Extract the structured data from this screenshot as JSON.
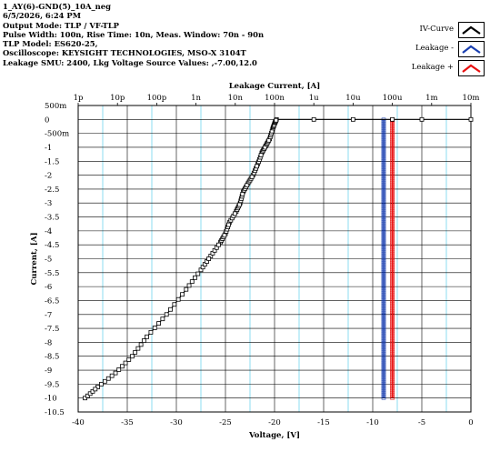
{
  "header": {
    "lines": [
      "1_AY(6)-GND(5)_10A_neg",
      "6/5/2026, 6:24 PM",
      "Output Mode: TLP / VF-TLP",
      "Pulse Width: 100n, Rise Time: 10n, Meas. Window: 70n -  90n",
      "TLP Model: ES620-25,",
      "Oscilloscope: KEYSIGHT TECHNOLOGIES, MSO-X 3104T",
      "Leakage SMU: 2400, Lkg Voltage Source Values: ,-7.00,12.0"
    ]
  },
  "legend": [
    {
      "label": "IV-Curve",
      "color": "#000000"
    },
    {
      "label": "Leakage -",
      "color": "#1a3fb0"
    },
    {
      "label": "Leakage +",
      "color": "#e81010"
    }
  ],
  "chart_data": {
    "type": "scatter",
    "xlabel": "Voltage, [V]",
    "ylabel": "Current, [A]",
    "x2label": "Leakage Current, [A]",
    "xlim": [
      -40,
      0
    ],
    "ylim": [
      -10.5,
      0.5
    ],
    "x_ticks": [
      "-40",
      "-35",
      "-30",
      "-25",
      "-20",
      "-15",
      "-10",
      "-5",
      "0"
    ],
    "y_ticks": [
      "500m",
      "0",
      "-500m",
      "-1",
      "-1.5",
      "-2",
      "-2.5",
      "-3",
      "-3.5",
      "-4",
      "-4.5",
      "-5",
      "-5.5",
      "-6",
      "-6.5",
      "-7",
      "-7.5",
      "-8",
      "-8.5",
      "-9",
      "-9.5",
      "-10",
      "-10.5"
    ],
    "x2_ticks": [
      "1p",
      "10p",
      "100p",
      "1n",
      "10n",
      "100n",
      "1u",
      "10u",
      "100u",
      "1m",
      "10m"
    ],
    "x2_log_range": [
      1e-12,
      0.01
    ],
    "series": [
      {
        "name": "IV-Curve",
        "color": "#000000",
        "x": [
          -39.3,
          -38.0,
          -36.2,
          -34.5,
          -33.0,
          -31.0,
          -29.0,
          -27.5,
          -26.5,
          -25.5,
          -25.0,
          -24.6,
          -23.9,
          -23.5,
          -23.2,
          -22.7,
          -22.2,
          -21.7,
          -21.3,
          -20.9,
          -20.5,
          -20.2,
          -20.0,
          -19.8,
          -16.0,
          -12.0,
          -8.0,
          -5.0,
          0.0
        ],
        "y": [
          -10.0,
          -9.6,
          -9.1,
          -8.5,
          -7.8,
          -7.0,
          -6.1,
          -5.4,
          -4.9,
          -4.4,
          -4.1,
          -3.7,
          -3.3,
          -3.0,
          -2.6,
          -2.3,
          -2.0,
          -1.6,
          -1.2,
          -0.95,
          -0.7,
          -0.35,
          -0.15,
          0.0,
          0.0,
          0.0,
          0.0,
          0.0,
          0.0
        ]
      },
      {
        "name": "Leakage -",
        "color": "#1a3fb0",
        "leakage_current": 6e-05,
        "y_range": [
          -10.0,
          0.0
        ]
      },
      {
        "name": "Leakage +",
        "color": "#e81010",
        "leakage_current": 0.0001,
        "y_range": [
          -10.0,
          0.0
        ]
      }
    ],
    "grid": true
  }
}
